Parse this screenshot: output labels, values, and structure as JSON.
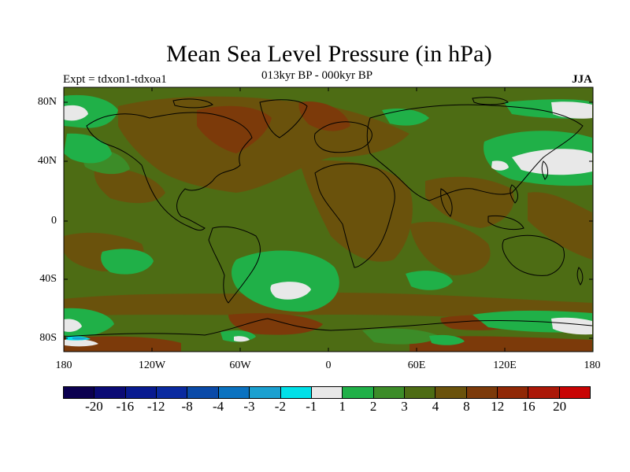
{
  "title": "Mean Sea Level Pressure (in hPa)",
  "subtitle": "013kyr BP - 000kyr BP",
  "experiment": "Expt = tdxon1-tdxoa1",
  "season": "JJA",
  "lat_labels": [
    "80N",
    "40N",
    "0",
    "40S",
    "80S"
  ],
  "lon_labels": [
    "180",
    "120W",
    "60W",
    "0",
    "60E",
    "120E",
    "180"
  ],
  "colorbar": {
    "labels": [
      "-20",
      "-16",
      "-12",
      "-8",
      "-4",
      "-3",
      "-2",
      "-1",
      "1",
      "2",
      "3",
      "4",
      "8",
      "12",
      "16",
      "20"
    ],
    "colors": [
      "#0b0050",
      "#0a0a75",
      "#081a90",
      "#0a2aa0",
      "#0a4aa8",
      "#0a72c0",
      "#1aa0d0",
      "#00e0e8",
      "#e8e8e8",
      "#20b048",
      "#3c8c28",
      "#4d6c14",
      "#6a520c",
      "#7c3a0a",
      "#902806",
      "#ab1808",
      "#c80404"
    ]
  },
  "colors": {
    "background_field": "#4d6c14",
    "land_outline": "#000000"
  }
}
